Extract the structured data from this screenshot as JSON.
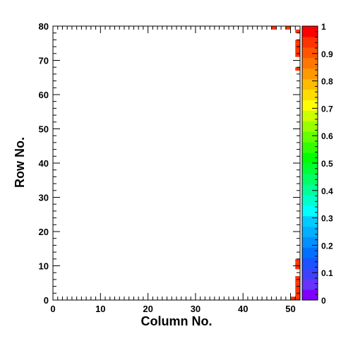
{
  "chart_data": {
    "type": "heatmap",
    "title": "",
    "xlabel": "Column No.",
    "ylabel": "Row No.",
    "xlim": [
      0,
      52
    ],
    "ylim": [
      0,
      80
    ],
    "x_ticks": [
      0,
      10,
      20,
      30,
      40,
      50
    ],
    "y_ticks": [
      0,
      10,
      20,
      30,
      40,
      50,
      60,
      70,
      80
    ],
    "z_range": [
      0,
      1
    ],
    "colorbar_ticks": [
      "0",
      "0.1",
      "0.2",
      "0.3",
      "0.4",
      "0.5",
      "0.6",
      "0.7",
      "0.8",
      "0.9",
      "1"
    ],
    "colorbar_colors": [
      "#7f00ff",
      "#6633ff",
      "#4040ff",
      "#1a53ff",
      "#0070ff",
      "#0090ff",
      "#00b0ff",
      "#00ccff",
      "#00ffff",
      "#00ffcc",
      "#00ff99",
      "#00ff66",
      "#00ff33",
      "#00ff00",
      "#33ff00",
      "#66ff00",
      "#99ff00",
      "#ccff00",
      "#ffff00",
      "#ffdd00",
      "#ffbb00",
      "#ff9900",
      "#ff7700",
      "#ff5500",
      "#ff3300",
      "#ff0000"
    ],
    "cell_color": "#ff3300",
    "cells": [
      {
        "col": 46,
        "row": 79,
        "value": 1
      },
      {
        "col": 49,
        "row": 79,
        "value": 1
      },
      {
        "col": 51,
        "row": 78,
        "value": 1
      },
      {
        "col": 51,
        "row": 75,
        "value": 1
      },
      {
        "col": 51,
        "row": 74,
        "value": 1
      },
      {
        "col": 51,
        "row": 73,
        "value": 1
      },
      {
        "col": 51,
        "row": 72,
        "value": 1
      },
      {
        "col": 51,
        "row": 71,
        "value": 1
      },
      {
        "col": 51,
        "row": 67,
        "value": 1
      },
      {
        "col": 51,
        "row": 11,
        "value": 1
      },
      {
        "col": 51,
        "row": 10,
        "value": 1
      },
      {
        "col": 51,
        "row": 9,
        "value": 1
      },
      {
        "col": 51,
        "row": 6,
        "value": 1
      },
      {
        "col": 51,
        "row": 5,
        "value": 1
      },
      {
        "col": 51,
        "row": 4,
        "value": 1
      },
      {
        "col": 51,
        "row": 3,
        "value": 1
      },
      {
        "col": 51,
        "row": 2,
        "value": 1
      },
      {
        "col": 51,
        "row": 1,
        "value": 1
      },
      {
        "col": 51,
        "row": 0,
        "value": 1
      },
      {
        "col": 50,
        "row": 0,
        "value": 1
      }
    ]
  }
}
